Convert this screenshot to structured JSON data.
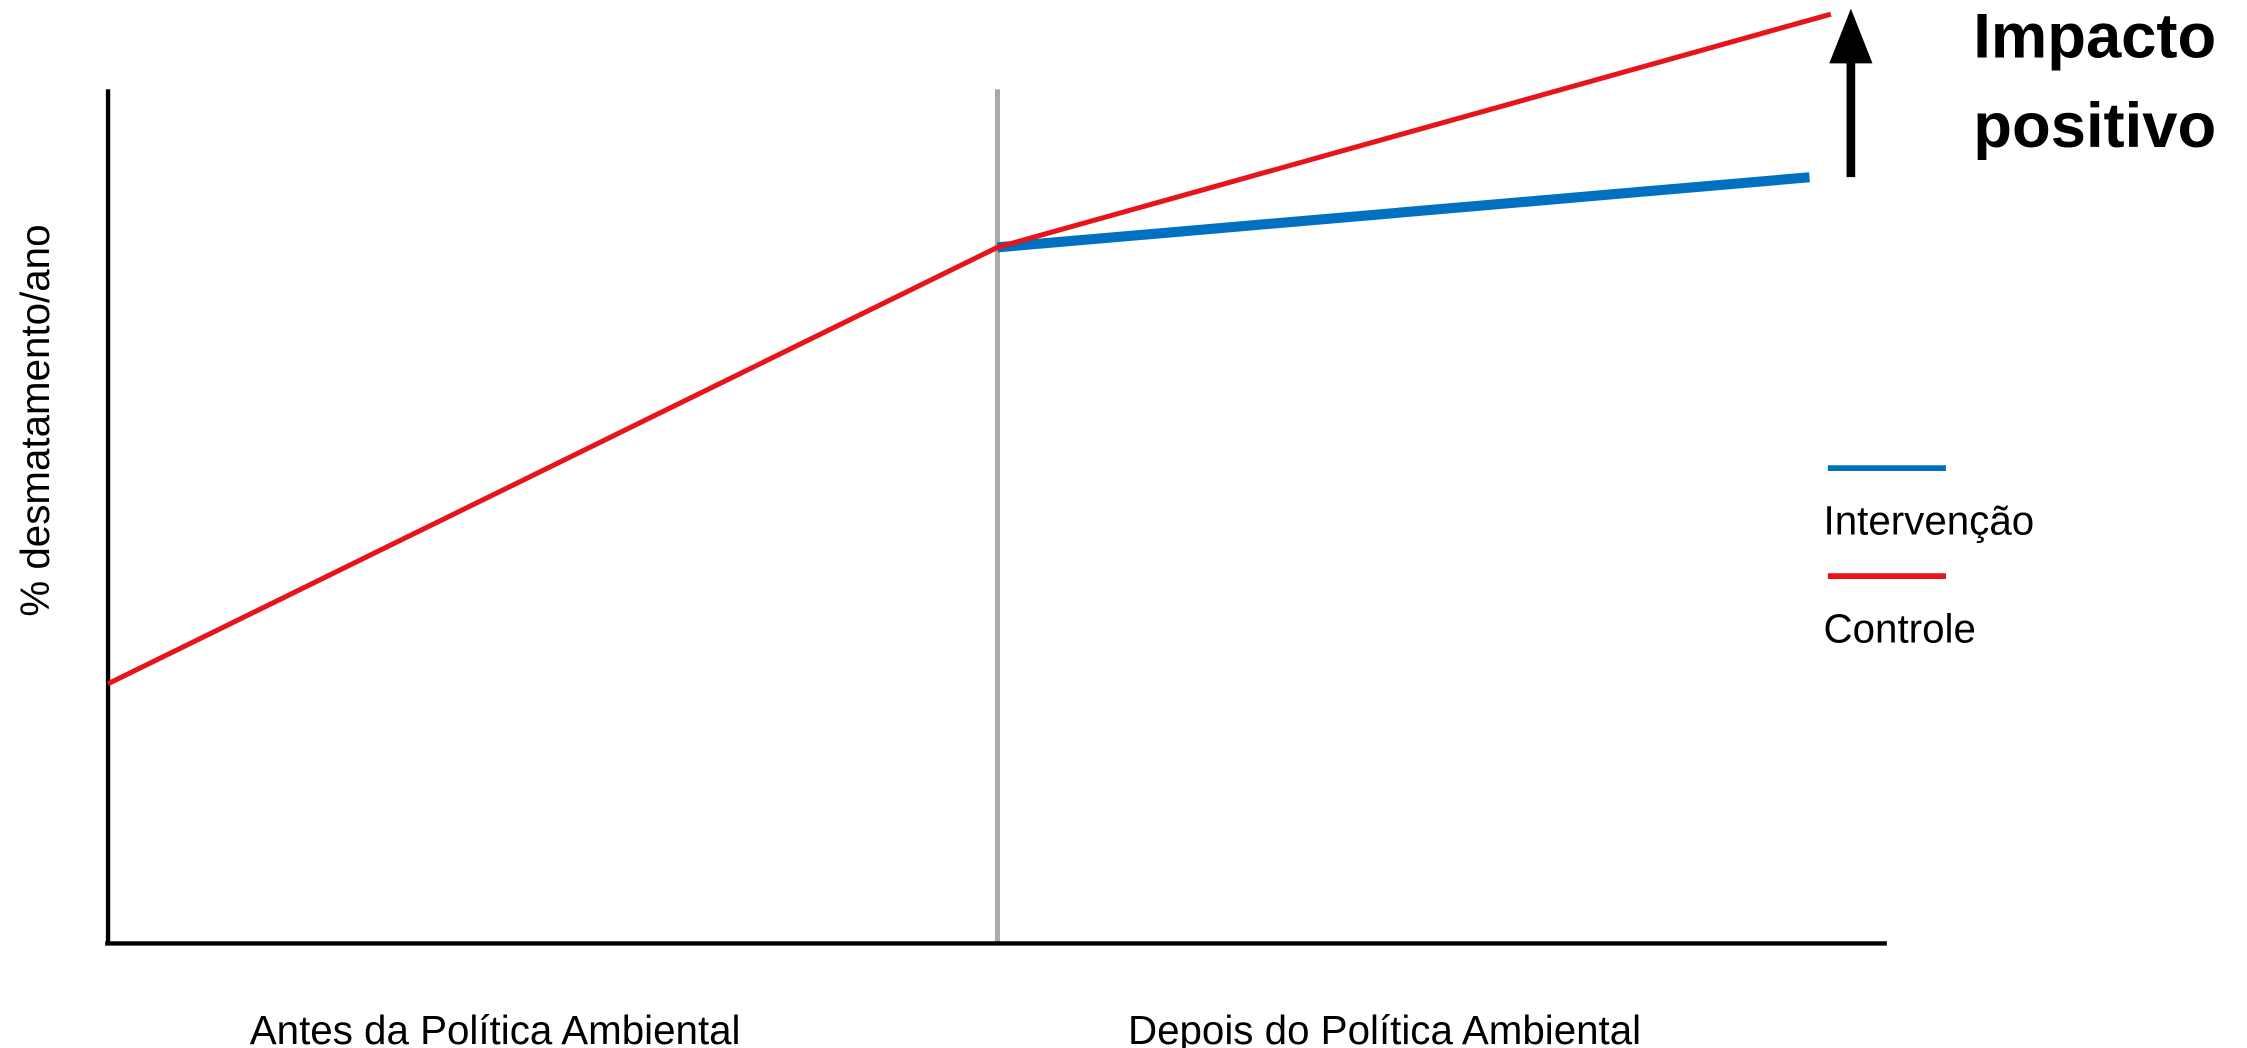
{
  "chart_data": {
    "type": "line",
    "ylabel": "% desmatamento/ano",
    "period_labels": [
      "Antes da Política Ambiental",
      "Depois do Política Ambiental"
    ],
    "policy_x": 1,
    "xlim": [
      0,
      2
    ],
    "ylim": [
      0,
      100
    ],
    "annotation": [
      "Impacto",
      "positivo"
    ],
    "legend": "right",
    "series": [
      {
        "name": "Intervenção",
        "color": "#0070c0",
        "width": 7,
        "x": [
          1,
          1.913
        ],
        "values": [
          81.5,
          89.7
        ]
      },
      {
        "name": "Controle",
        "color": "#e8141b",
        "width": 3.5,
        "x": [
          0,
          1,
          1.937
        ],
        "values": [
          30.4,
          81.5,
          108.8
        ]
      }
    ]
  }
}
